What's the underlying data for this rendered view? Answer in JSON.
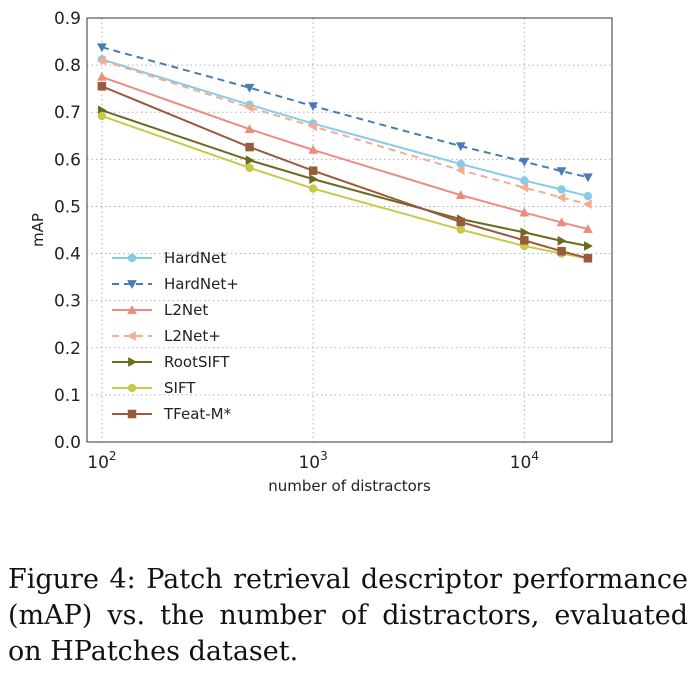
{
  "chart_data": {
    "type": "line",
    "title": "",
    "xlabel": "number of distractors",
    "ylabel": "mAP",
    "xscale": "log",
    "xlim": [
      85,
      26000
    ],
    "ylim": [
      0.0,
      0.9
    ],
    "yticks": [
      0.0,
      0.1,
      0.2,
      0.3,
      0.4,
      0.5,
      0.6,
      0.7,
      0.8,
      0.9
    ],
    "ytick_labels": [
      "0.0",
      "0.1",
      "0.2",
      "0.3",
      "0.4",
      "0.5",
      "0.6",
      "0.7",
      "0.8",
      "0.9"
    ],
    "xticks": [
      {
        "value": 100,
        "base": "10",
        "exp": "2"
      },
      {
        "value": 1000,
        "base": "10",
        "exp": "3"
      },
      {
        "value": 10000,
        "base": "10",
        "exp": "4"
      }
    ],
    "grid": true,
    "legend_position": "lower-left",
    "x": [
      100,
      500,
      1000,
      5000,
      10000,
      15000,
      20000
    ],
    "series": [
      {
        "name": "HardNet",
        "color": "#87cbeb",
        "dash": "solid",
        "marker": "circle",
        "values": [
          0.812,
          0.716,
          0.676,
          0.59,
          0.555,
          0.536,
          0.522
        ]
      },
      {
        "name": "HardNet+",
        "color": "#4a7cb3",
        "dash": "dashed",
        "marker": "triangle-down",
        "values": [
          0.838,
          0.752,
          0.713,
          0.628,
          0.595,
          0.575,
          0.562
        ]
      },
      {
        "name": "L2Net",
        "color": "#ec8c80",
        "dash": "solid",
        "marker": "triangle-up",
        "values": [
          0.775,
          0.664,
          0.62,
          0.524,
          0.487,
          0.466,
          0.452
        ]
      },
      {
        "name": "L2Net+",
        "color": "#f4ad90",
        "dash": "dashed",
        "marker": "triangle-left",
        "values": [
          0.81,
          0.71,
          0.67,
          0.577,
          0.54,
          0.519,
          0.505
        ]
      },
      {
        "name": "RootSIFT",
        "color": "#6b6b1f",
        "dash": "solid",
        "marker": "triangle-right",
        "values": [
          0.704,
          0.598,
          0.558,
          0.473,
          0.445,
          0.427,
          0.416
        ]
      },
      {
        "name": "SIFT",
        "color": "#c8c84a",
        "dash": "solid",
        "marker": "circle",
        "values": [
          0.692,
          0.582,
          0.538,
          0.451,
          0.416,
          0.4,
          0.39
        ]
      },
      {
        "name": "TFeat-M*",
        "color": "#9a5a3c",
        "dash": "solid",
        "marker": "square",
        "values": [
          0.755,
          0.626,
          0.576,
          0.467,
          0.428,
          0.405,
          0.39
        ]
      }
    ]
  },
  "caption": "Figure 4: Patch retrieval descriptor performance (mAP) vs. the number of distractors, evaluated on HPatches dataset."
}
